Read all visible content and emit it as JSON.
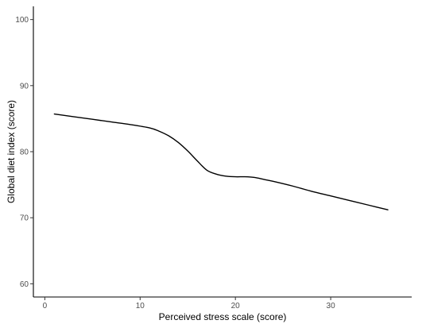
{
  "chart_data": {
    "type": "line",
    "title": "",
    "xlabel": "Perceived stress scale (score)",
    "ylabel": "Global diet index (score)",
    "xlim": [
      -1.2,
      38.5
    ],
    "ylim": [
      58,
      102
    ],
    "x_ticks": [
      0,
      10,
      20,
      30
    ],
    "y_ticks": [
      60,
      70,
      80,
      90,
      100
    ],
    "grid": false,
    "series": [
      {
        "color": "#000000",
        "x": [
          1,
          3,
          5,
          7,
          9,
          11,
          12,
          13,
          14,
          15,
          16,
          17,
          18,
          19,
          20,
          21,
          22,
          23,
          24,
          26,
          28,
          30,
          32,
          34,
          36
        ],
        "y": [
          85.7,
          85.3,
          84.9,
          84.5,
          84.1,
          83.6,
          83.1,
          82.4,
          81.4,
          80.1,
          78.6,
          77.2,
          76.6,
          76.3,
          76.2,
          76.2,
          76.1,
          75.8,
          75.5,
          74.8,
          74.0,
          73.3,
          72.6,
          71.9,
          71.2
        ]
      }
    ]
  }
}
